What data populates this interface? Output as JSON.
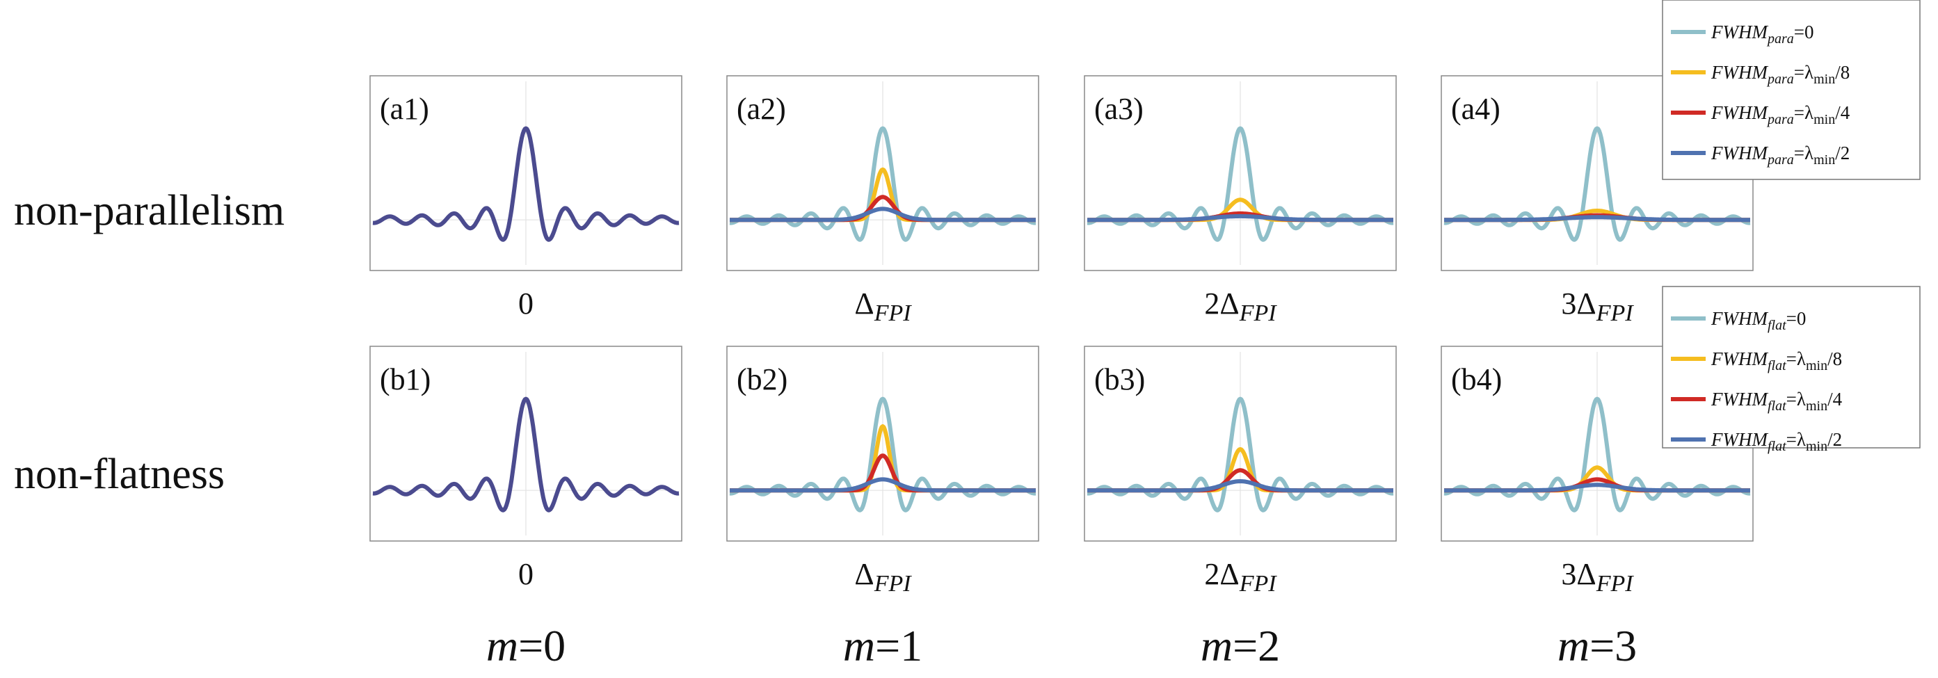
{
  "chart_data": {
    "type": "line",
    "title": "",
    "xlabel": "",
    "ylabel": "",
    "row_labels": [
      "non-parallelism",
      "non-flatness"
    ],
    "column_labels": [
      {
        "var": "m",
        "eq": "=",
        "val": "0"
      },
      {
        "var": "m",
        "eq": "=",
        "val": "1"
      },
      {
        "var": "m",
        "eq": "=",
        "val": "2"
      },
      {
        "var": "m",
        "eq": "=",
        "val": "3"
      }
    ],
    "panel_xlabels": [
      {
        "prefix": "",
        "symbol": "0",
        "sub": ""
      },
      {
        "prefix": "",
        "symbol": "Δ",
        "sub": "FPI"
      },
      {
        "prefix": "2",
        "symbol": "Δ",
        "sub": "FPI"
      },
      {
        "prefix": "3",
        "symbol": "Δ",
        "sub": "FPI"
      }
    ],
    "panels": [
      {
        "label": "(a1)",
        "row": "non-parallelism",
        "m": 0,
        "peak_heights": [
          1.0
        ]
      },
      {
        "label": "(a2)",
        "row": "non-parallelism",
        "m": 1,
        "peak_heights": [
          1.0,
          0.55,
          0.25,
          0.12
        ]
      },
      {
        "label": "(a3)",
        "row": "non-parallelism",
        "m": 2,
        "peak_heights": [
          1.0,
          0.22,
          0.07,
          0.04
        ]
      },
      {
        "label": "(a4)",
        "row": "non-parallelism",
        "m": 3,
        "peak_heights": [
          1.0,
          0.1,
          0.05,
          0.03
        ]
      },
      {
        "label": "(b1)",
        "row": "non-flatness",
        "m": 0,
        "peak_heights": [
          1.0
        ]
      },
      {
        "label": "(b2)",
        "row": "non-flatness",
        "m": 1,
        "peak_heights": [
          1.0,
          0.7,
          0.38,
          0.12
        ]
      },
      {
        "label": "(b3)",
        "row": "non-flatness",
        "m": 2,
        "peak_heights": [
          1.0,
          0.45,
          0.22,
          0.1
        ]
      },
      {
        "label": "(b4)",
        "row": "non-flatness",
        "m": 3,
        "peak_heights": [
          1.0,
          0.25,
          0.12,
          0.06
        ]
      }
    ],
    "series": [
      {
        "name": "0",
        "color": "#8fbfc9"
      },
      {
        "name": "λmin/8",
        "color": "#f5bd1f"
      },
      {
        "name": "λmin/4",
        "color": "#d02a25"
      },
      {
        "name": "λmin/2",
        "color": "#4f72b0"
      }
    ],
    "single_series_color": "#4b4b8f",
    "legends": [
      {
        "var": "FWHM",
        "sub": "para",
        "entries": [
          {
            "value": "0",
            "color": "#8fbfc9"
          },
          {
            "value": "λ",
            "sub2": "min",
            "tail": "/8",
            "color": "#f5bd1f"
          },
          {
            "value": "λ",
            "sub2": "min",
            "tail": "/4",
            "color": "#d02a25"
          },
          {
            "value": "λ",
            "sub2": "min",
            "tail": "/2",
            "color": "#4f72b0"
          }
        ]
      },
      {
        "var": "FWHM",
        "sub": "flat",
        "entries": [
          {
            "value": "0",
            "color": "#8fbfc9"
          },
          {
            "value": "λ",
            "sub2": "min",
            "tail": "/8",
            "color": "#f5bd1f"
          },
          {
            "value": "λ",
            "sub2": "min",
            "tail": "/4",
            "color": "#d02a25"
          },
          {
            "value": "λ",
            "sub2": "min",
            "tail": "/2",
            "color": "#4f72b0"
          }
        ]
      }
    ]
  }
}
